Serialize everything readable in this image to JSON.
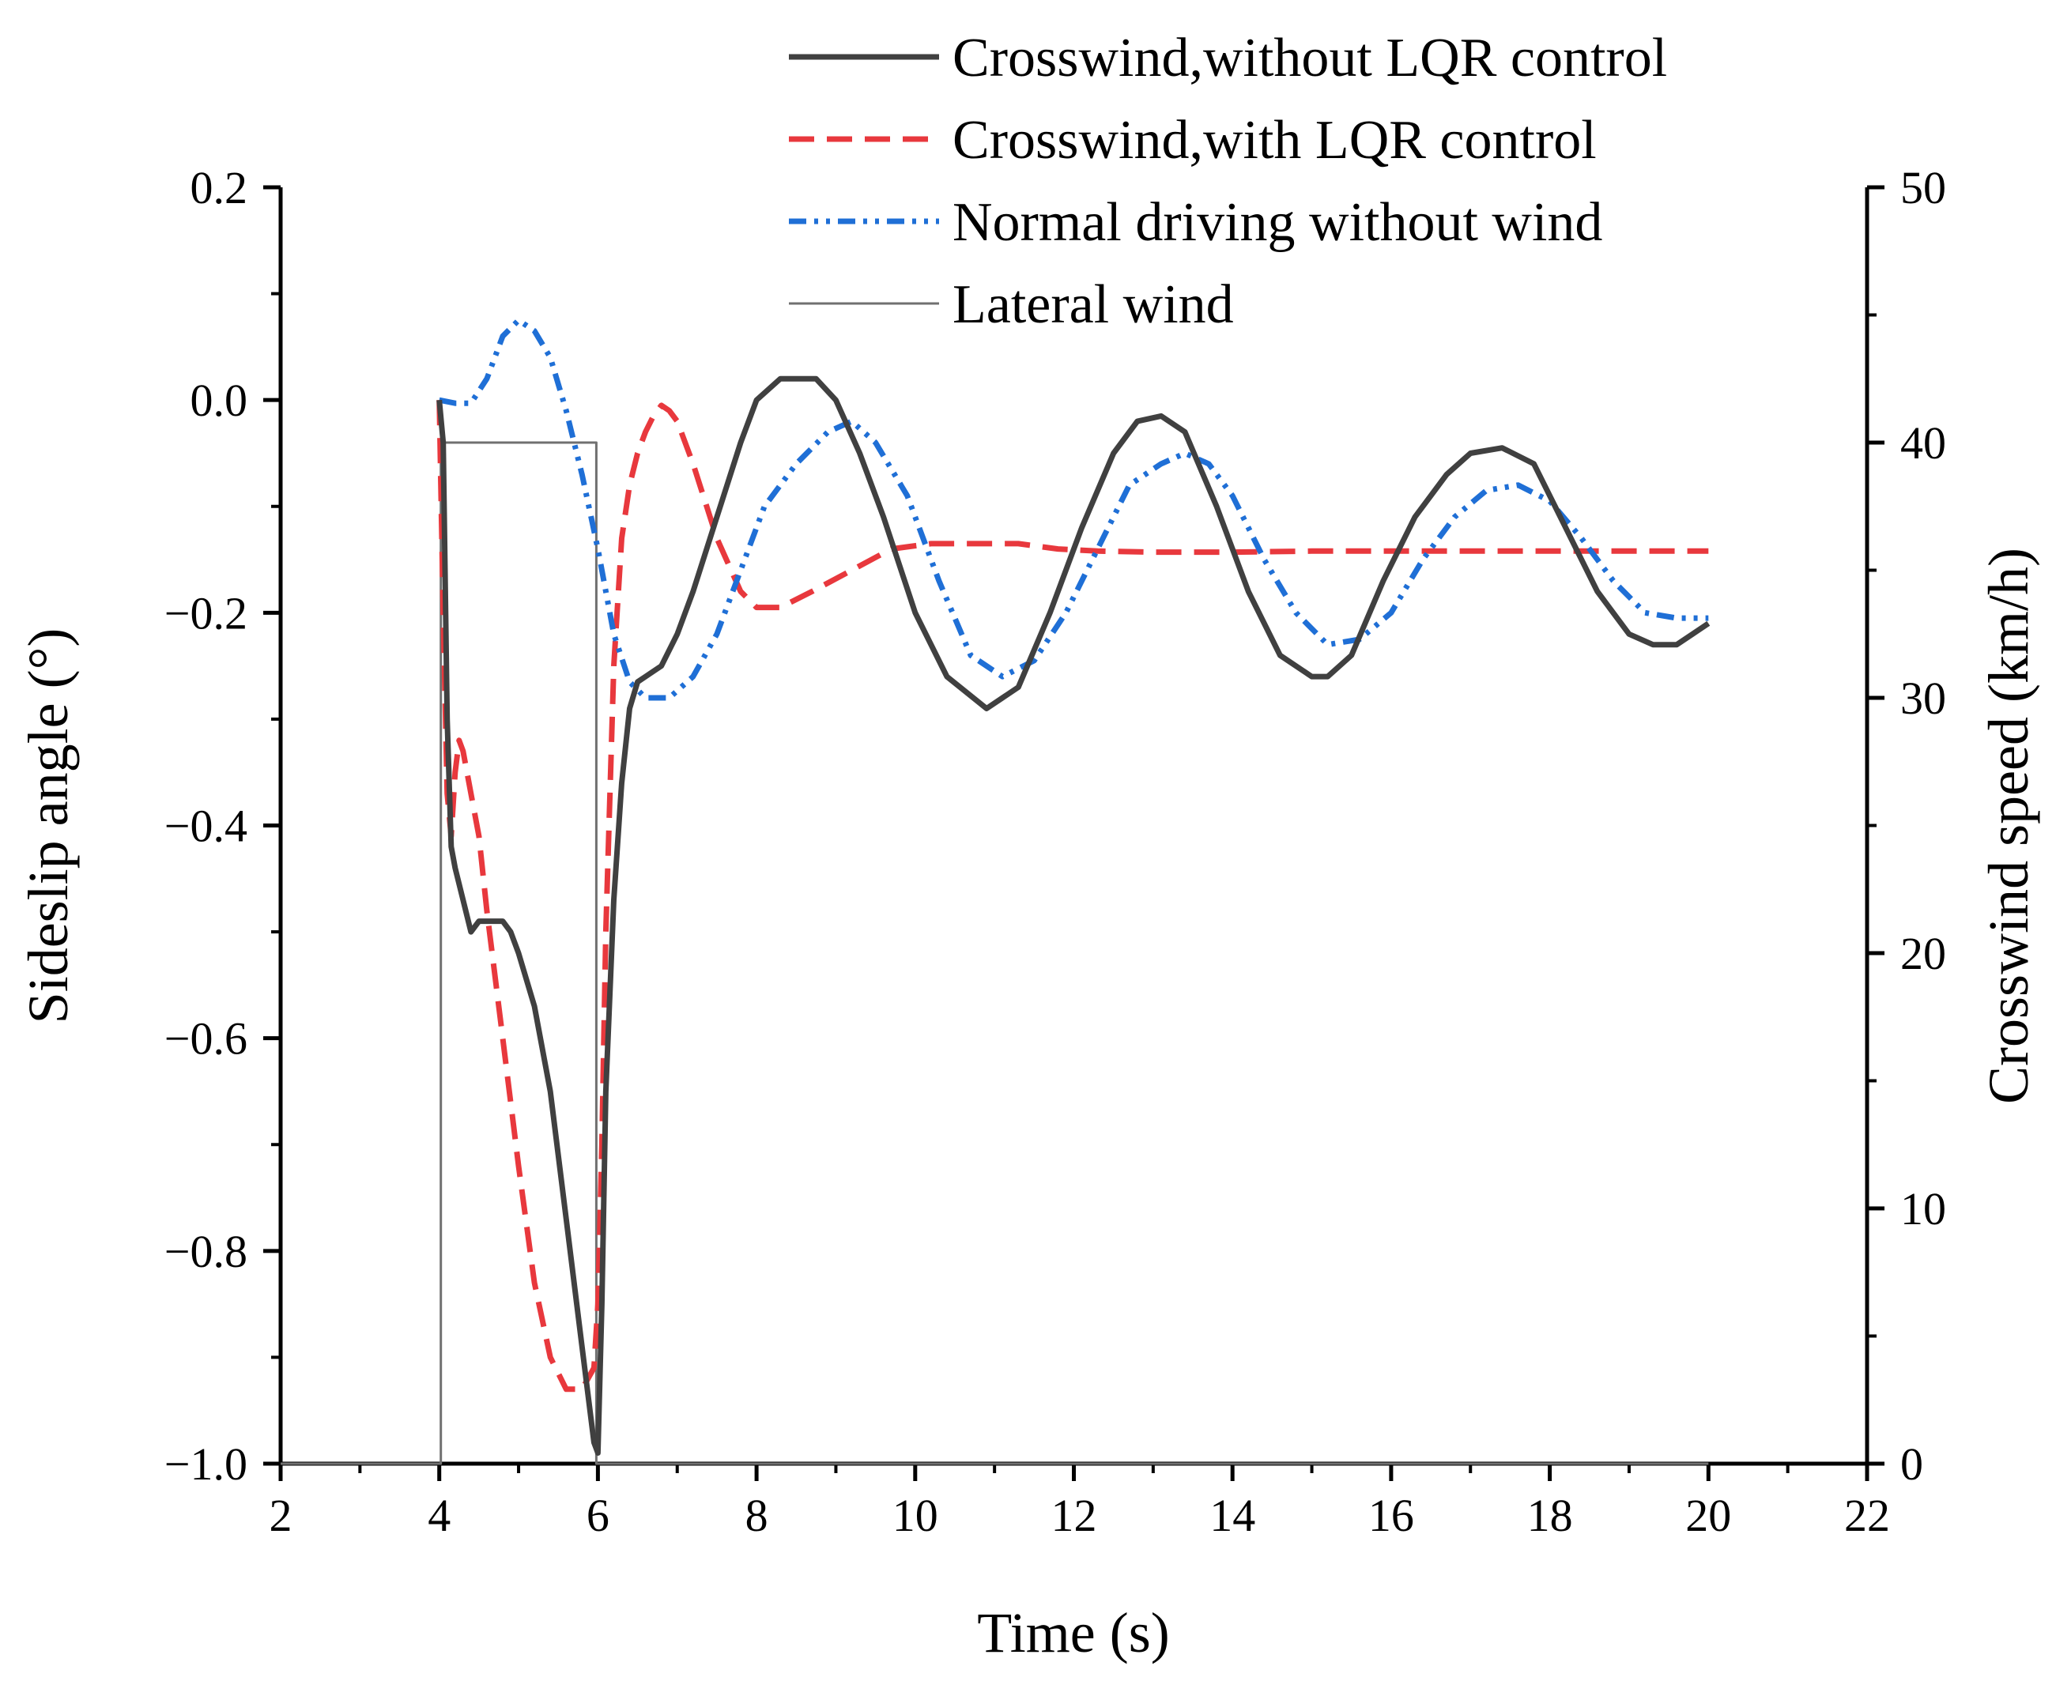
{
  "chart_data": {
    "type": "line",
    "title": "",
    "xlabel": "Time (s)",
    "ylabel": "Sideslip angle (°)",
    "y2label": "Crosswind speed (km/h)",
    "xlim": [
      2,
      22
    ],
    "ylim": [
      -1.0,
      0.2
    ],
    "y2lim": [
      0,
      50
    ],
    "xticks": [
      2,
      4,
      6,
      8,
      10,
      12,
      14,
      16,
      18,
      20,
      22
    ],
    "xtick_labels": [
      "2",
      "4",
      "6",
      "8",
      "10",
      "12",
      "14",
      "16",
      "18",
      "20",
      "22"
    ],
    "yticks": [
      -1.0,
      -0.8,
      -0.6,
      -0.4,
      -0.2,
      0.0,
      0.2
    ],
    "ytick_labels": [
      "−1.0",
      "−0.8",
      "−0.6",
      "−0.4",
      "−0.2",
      "0.0",
      "0.2"
    ],
    "y2ticks": [
      0,
      10,
      20,
      30,
      40,
      50
    ],
    "y2tick_labels": [
      "0",
      "10",
      "20",
      "30",
      "40",
      "50"
    ],
    "grid": false,
    "legend_position": "top-right",
    "series": [
      {
        "name": "Crosswind,without LQR control",
        "axis": "left",
        "color": "#404040",
        "dash": "solid",
        "x": [
          4.0,
          4.05,
          4.1,
          4.15,
          4.2,
          4.3,
          4.4,
          4.5,
          4.6,
          4.7,
          4.8,
          4.9,
          5.0,
          5.2,
          5.4,
          5.6,
          5.8,
          5.95,
          6.0,
          6.05,
          6.1,
          6.2,
          6.3,
          6.4,
          6.5,
          6.6,
          6.7,
          6.8,
          7.0,
          7.2,
          7.5,
          7.8,
          8.0,
          8.3,
          8.5,
          8.75,
          9.0,
          9.3,
          9.6,
          10.0,
          10.4,
          10.9,
          11.3,
          11.7,
          12.1,
          12.5,
          12.8,
          13.1,
          13.4,
          13.8,
          14.2,
          14.6,
          15.0,
          15.2,
          15.5,
          15.9,
          16.3,
          16.7,
          17.0,
          17.4,
          17.8,
          18.2,
          18.6,
          19.0,
          19.3,
          19.6,
          19.8,
          20.0
        ],
        "y": [
          0.0,
          -0.04,
          -0.3,
          -0.42,
          -0.44,
          -0.47,
          -0.5,
          -0.49,
          -0.49,
          -0.49,
          -0.49,
          -0.5,
          -0.52,
          -0.57,
          -0.65,
          -0.77,
          -0.89,
          -0.98,
          -0.99,
          -0.85,
          -0.65,
          -0.47,
          -0.36,
          -0.29,
          -0.265,
          -0.26,
          -0.255,
          -0.25,
          -0.22,
          -0.18,
          -0.11,
          -0.04,
          0.0,
          0.02,
          0.02,
          0.02,
          0.0,
          -0.05,
          -0.11,
          -0.2,
          -0.26,
          -0.29,
          -0.27,
          -0.2,
          -0.12,
          -0.05,
          -0.02,
          -0.015,
          -0.03,
          -0.1,
          -0.18,
          -0.24,
          -0.26,
          -0.26,
          -0.24,
          -0.17,
          -0.11,
          -0.07,
          -0.05,
          -0.045,
          -0.06,
          -0.12,
          -0.18,
          -0.22,
          -0.23,
          -0.23,
          -0.22,
          -0.21
        ]
      },
      {
        "name": "Crosswind,with LQR control",
        "axis": "left",
        "color": "#e8383d",
        "dash": "dashed",
        "x": [
          4.0,
          4.05,
          4.1,
          4.15,
          4.2,
          4.25,
          4.3,
          4.35,
          4.4,
          4.5,
          4.6,
          4.8,
          5.0,
          5.2,
          5.4,
          5.6,
          5.8,
          5.95,
          6.0,
          6.05,
          6.1,
          6.2,
          6.3,
          6.4,
          6.5,
          6.6,
          6.7,
          6.8,
          6.9,
          7.0,
          7.2,
          7.5,
          7.8,
          8.0,
          8.3,
          8.7,
          9.2,
          9.7,
          10.2,
          10.8,
          11.3,
          11.8,
          12.3,
          13.0,
          14.0,
          15.0,
          16.0,
          17.0,
          18.0,
          19.0,
          20.0
        ],
        "y": [
          0.0,
          -0.2,
          -0.37,
          -0.41,
          -0.35,
          -0.32,
          -0.33,
          -0.35,
          -0.37,
          -0.41,
          -0.48,
          -0.6,
          -0.72,
          -0.83,
          -0.9,
          -0.93,
          -0.93,
          -0.91,
          -0.85,
          -0.7,
          -0.5,
          -0.25,
          -0.13,
          -0.08,
          -0.05,
          -0.03,
          -0.015,
          -0.005,
          -0.01,
          -0.02,
          -0.06,
          -0.13,
          -0.18,
          -0.195,
          -0.195,
          -0.18,
          -0.16,
          -0.14,
          -0.135,
          -0.135,
          -0.135,
          -0.14,
          -0.142,
          -0.143,
          -0.143,
          -0.142,
          -0.142,
          -0.142,
          -0.142,
          -0.142,
          -0.142
        ]
      },
      {
        "name": "Normal driving without wind",
        "axis": "left",
        "color": "#1f6fd6",
        "dash": "dash-dot-dot",
        "x": [
          4.0,
          4.2,
          4.4,
          4.6,
          4.8,
          5.0,
          5.2,
          5.4,
          5.6,
          5.8,
          6.0,
          6.2,
          6.4,
          6.6,
          6.9,
          7.2,
          7.5,
          7.8,
          8.1,
          8.5,
          8.9,
          9.2,
          9.5,
          9.9,
          10.3,
          10.7,
          11.1,
          11.5,
          11.9,
          12.3,
          12.7,
          13.1,
          13.4,
          13.7,
          14.0,
          14.4,
          14.8,
          15.2,
          15.6,
          16.0,
          16.4,
          16.8,
          17.2,
          17.6,
          18.0,
          18.4,
          18.8,
          19.2,
          19.6,
          20.0
        ],
        "y": [
          0.0,
          -0.003,
          -0.003,
          0.02,
          0.06,
          0.075,
          0.065,
          0.04,
          -0.01,
          -0.07,
          -0.14,
          -0.22,
          -0.265,
          -0.28,
          -0.28,
          -0.26,
          -0.22,
          -0.16,
          -0.1,
          -0.06,
          -0.03,
          -0.02,
          -0.04,
          -0.09,
          -0.17,
          -0.24,
          -0.26,
          -0.245,
          -0.2,
          -0.14,
          -0.08,
          -0.06,
          -0.05,
          -0.06,
          -0.09,
          -0.15,
          -0.2,
          -0.23,
          -0.225,
          -0.2,
          -0.15,
          -0.11,
          -0.085,
          -0.08,
          -0.095,
          -0.13,
          -0.17,
          -0.2,
          -0.205,
          -0.205
        ]
      },
      {
        "name": "Lateral wind",
        "axis": "right",
        "color": "#707070",
        "dash": "solid-thin",
        "x": [
          2,
          3.98,
          3.98,
          4.02,
          4.02,
          5.98,
          5.98,
          6.02,
          6.02,
          20.0
        ],
        "y": [
          0,
          0,
          0,
          0,
          40,
          40,
          0,
          0,
          0,
          0
        ]
      }
    ]
  }
}
